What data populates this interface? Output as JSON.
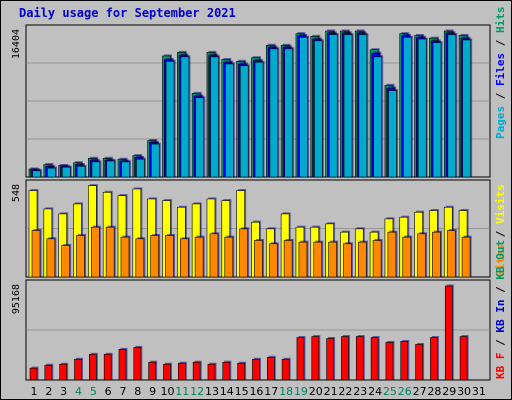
{
  "title": "Daily usage for September 2021",
  "colors": {
    "background": "#c0c0c0",
    "pages": "#00aacc",
    "files": "#0000ff",
    "hits": "#009966",
    "visits": "#ffff00",
    "sites": "#ff8800",
    "kb_in": "#0000cc",
    "kb_out": "#009966",
    "kb_f": "#ff0000",
    "weekend_day": "#00805c",
    "weekday": "#000000"
  },
  "chart_data": [
    {
      "type": "bar",
      "name": "hits-files-pages",
      "categories": [
        "1",
        "2",
        "3",
        "4",
        "5",
        "6",
        "7",
        "8",
        "9",
        "10",
        "11",
        "12",
        "13",
        "14",
        "15",
        "16",
        "17",
        "18",
        "19",
        "20",
        "21",
        "22",
        "23",
        "24",
        "25",
        "26",
        "27",
        "28",
        "29",
        "30",
        "31"
      ],
      "weekend_days": [
        "4",
        "5",
        "11",
        "12",
        "18",
        "19",
        "25",
        "26"
      ],
      "ymax_label": "16404",
      "ymax": 16404,
      "side_label": [
        "Pages",
        "Files",
        "Hits"
      ],
      "series": [
        {
          "name": "Hits",
          "values": [
            900,
            1400,
            1300,
            1600,
            2100,
            2100,
            2000,
            2400,
            4100,
            13600,
            14000,
            9400,
            14000,
            13200,
            13000,
            13400,
            14800,
            14800,
            16100,
            15800,
            16400,
            16400,
            16400,
            14300,
            10300,
            16100,
            15900,
            15600,
            16400,
            15900,
            null
          ]
        },
        {
          "name": "Files",
          "values": [
            800,
            1200,
            1200,
            1400,
            1900,
            1900,
            1800,
            2200,
            3900,
            13200,
            13700,
            9100,
            13700,
            12900,
            12700,
            13100,
            14600,
            14600,
            15900,
            15500,
            16200,
            16200,
            16200,
            13900,
            10000,
            15900,
            15700,
            15300,
            16200,
            15600,
            null
          ]
        },
        {
          "name": "Pages",
          "values": [
            700,
            1000,
            1100,
            1200,
            1700,
            1800,
            1700,
            2000,
            3700,
            13000,
            13500,
            8900,
            13500,
            12700,
            12500,
            12900,
            14400,
            14400,
            15700,
            15300,
            16000,
            16000,
            16000,
            13500,
            9700,
            15700,
            15500,
            15100,
            16000,
            15400,
            null
          ]
        }
      ]
    },
    {
      "type": "bar",
      "name": "visits-sites",
      "categories": [
        "1",
        "2",
        "3",
        "4",
        "5",
        "6",
        "7",
        "8",
        "9",
        "10",
        "11",
        "12",
        "13",
        "14",
        "15",
        "16",
        "17",
        "18",
        "19",
        "20",
        "21",
        "22",
        "23",
        "24",
        "25",
        "26",
        "27",
        "28",
        "29",
        "30",
        "31"
      ],
      "ymax_label": "548",
      "ymax": 548,
      "side_label": [
        "Visits",
        "Sites"
      ],
      "series": [
        {
          "name": "Visits",
          "values": [
            520,
            410,
            380,
            440,
            550,
            510,
            490,
            530,
            470,
            460,
            420,
            440,
            470,
            460,
            520,
            330,
            290,
            380,
            300,
            300,
            320,
            270,
            290,
            270,
            350,
            360,
            390,
            400,
            420,
            400,
            null
          ]
        },
        {
          "name": "Sites",
          "values": [
            280,
            230,
            190,
            250,
            300,
            300,
            240,
            230,
            250,
            250,
            230,
            240,
            260,
            240,
            290,
            220,
            200,
            220,
            210,
            210,
            210,
            200,
            210,
            220,
            270,
            240,
            260,
            270,
            280,
            240,
            null
          ]
        }
      ]
    },
    {
      "type": "bar",
      "name": "kbytes",
      "categories": [
        "1",
        "2",
        "3",
        "4",
        "5",
        "6",
        "7",
        "8",
        "9",
        "10",
        "11",
        "12",
        "13",
        "14",
        "15",
        "16",
        "17",
        "18",
        "19",
        "20",
        "21",
        "22",
        "23",
        "24",
        "25",
        "26",
        "27",
        "28",
        "29",
        "30",
        "31"
      ],
      "ymax_label": "95168",
      "ymax": 95168,
      "side_label": [
        "KB F",
        "KB In",
        "KB Out"
      ],
      "series": [
        {
          "name": "KB F",
          "values": [
            12000,
            15000,
            16000,
            21000,
            26000,
            26000,
            31000,
            33000,
            18000,
            16000,
            17000,
            18000,
            16000,
            18000,
            17000,
            21000,
            23000,
            21000,
            43000,
            44000,
            42000,
            44000,
            44000,
            43000,
            38000,
            39000,
            36000,
            43000,
            95168,
            44000,
            null
          ]
        }
      ]
    }
  ]
}
